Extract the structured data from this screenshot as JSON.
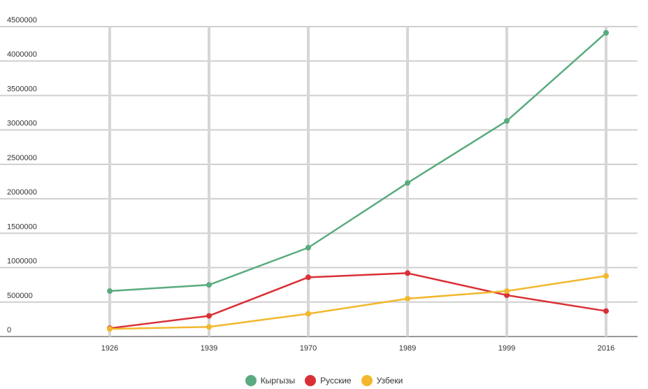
{
  "chart_data": {
    "type": "line",
    "title": "",
    "xlabel": "",
    "ylabel": "",
    "categories": [
      "1926",
      "1939",
      "1970",
      "1989",
      "1999",
      "2016"
    ],
    "ylim": [
      0,
      4500000
    ],
    "yticks": [
      "0",
      "500000",
      "1000000",
      "1500000",
      "2000000",
      "2500000",
      "3000000",
      "3500000",
      "4000000",
      "4500000"
    ],
    "grid": true,
    "legend_position": "bottom",
    "series": [
      {
        "name": "Кыргызы",
        "color": "#5aab7f",
        "values": [
          660000,
          750000,
          1290000,
          2230000,
          3130000,
          4410000
        ]
      },
      {
        "name": "Русские",
        "color": "#d93036",
        "values": [
          120000,
          300000,
          860000,
          920000,
          600000,
          370000
        ]
      },
      {
        "name": "Узбеки",
        "color": "#f2b72c",
        "values": [
          110000,
          140000,
          330000,
          550000,
          660000,
          880000
        ]
      }
    ]
  }
}
